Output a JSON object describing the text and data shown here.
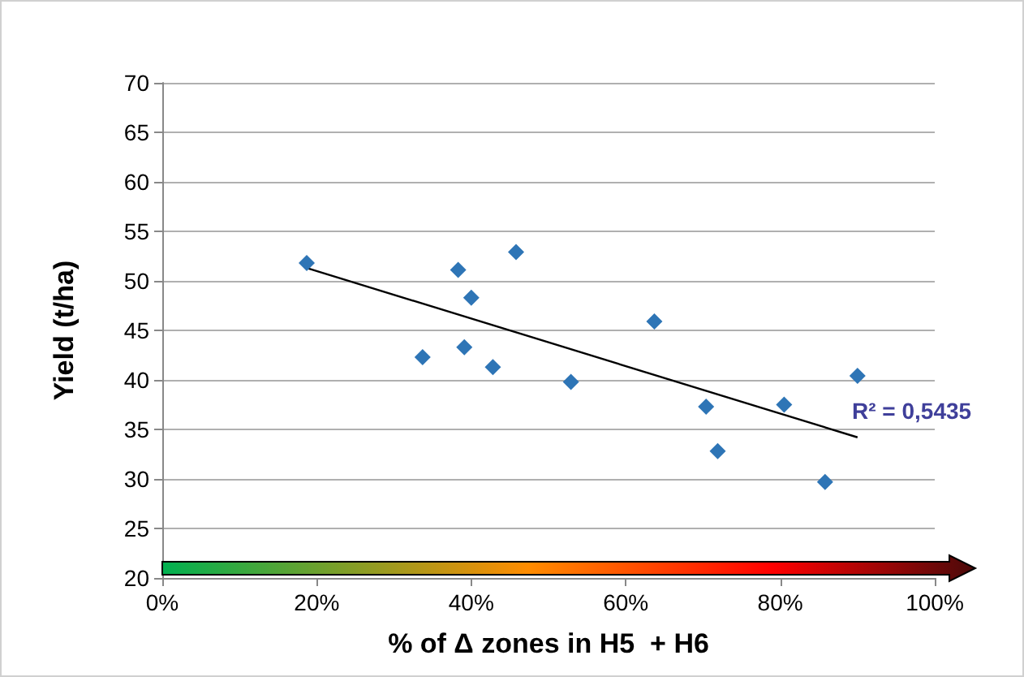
{
  "chart_data": {
    "type": "scatter",
    "xlabel": "% of Δ zones in H5  + H6",
    "ylabel": "Yield (t/ha)",
    "xlim": [
      0,
      100
    ],
    "xticks": [
      {
        "value": 0,
        "label": "0%"
      },
      {
        "value": 20,
        "label": "20%"
      },
      {
        "value": 40,
        "label": "40%"
      },
      {
        "value": 60,
        "label": "60%"
      },
      {
        "value": 80,
        "label": "80%"
      },
      {
        "value": 100,
        "label": "100%"
      }
    ],
    "ylim": [
      20,
      70
    ],
    "yticks": [
      20,
      25,
      30,
      35,
      40,
      45,
      50,
      55,
      60,
      65,
      70
    ],
    "grid": "y",
    "marker": "diamond",
    "series": [
      {
        "color": "#2e75b6",
        "x": [
          18.7,
          33.7,
          38.3,
          40.0,
          39.1,
          42.8,
          45.8,
          52.9,
          63.7,
          70.4,
          71.9,
          80.5,
          85.8,
          90.0
        ],
        "values": [
          51.8,
          42.3,
          51.1,
          48.3,
          43.3,
          41.3,
          52.9,
          39.8,
          45.9,
          37.3,
          32.8,
          37.5,
          29.7,
          40.4
        ]
      },
      {
        "type": "line",
        "color": "#000000",
        "marker": "none",
        "line_style": "solid",
        "x": [
          18.7,
          90.0
        ],
        "values": [
          51.3,
          34.2
        ]
      }
    ],
    "annotations": [
      "R² = 0,5435"
    ]
  }
}
